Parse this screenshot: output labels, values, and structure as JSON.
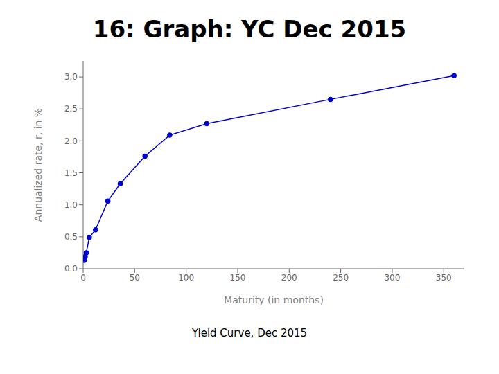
{
  "chart_data": {
    "type": "line",
    "title": "16: Graph: YC Dec 2015",
    "subtitle": "Yield Curve, Dec 2015",
    "xlabel": "Maturity (in months)",
    "ylabel": "Annualized rate, r, in %",
    "x": [
      1,
      2,
      3,
      6,
      12,
      24,
      36,
      60,
      84,
      120,
      240,
      360
    ],
    "values": [
      0.13,
      0.19,
      0.25,
      0.49,
      0.61,
      1.06,
      1.33,
      1.76,
      2.09,
      2.27,
      2.65,
      3.02
    ],
    "color": "#0000CC",
    "marker": "o",
    "xlim": [
      0,
      370
    ],
    "ylim": [
      0.0,
      3.25
    ],
    "xticks": [
      0,
      50,
      100,
      150,
      200,
      250,
      300,
      350
    ],
    "yticks": [
      {
        "value": 0.0,
        "label": "0.0"
      },
      0.5,
      {
        "value": 1.0,
        "label": "1.0"
      },
      1.5,
      {
        "value": 2.0,
        "label": "2.0"
      },
      2.5,
      {
        "value": 3.0,
        "label": "3.0"
      }
    ],
    "grid": false
  }
}
